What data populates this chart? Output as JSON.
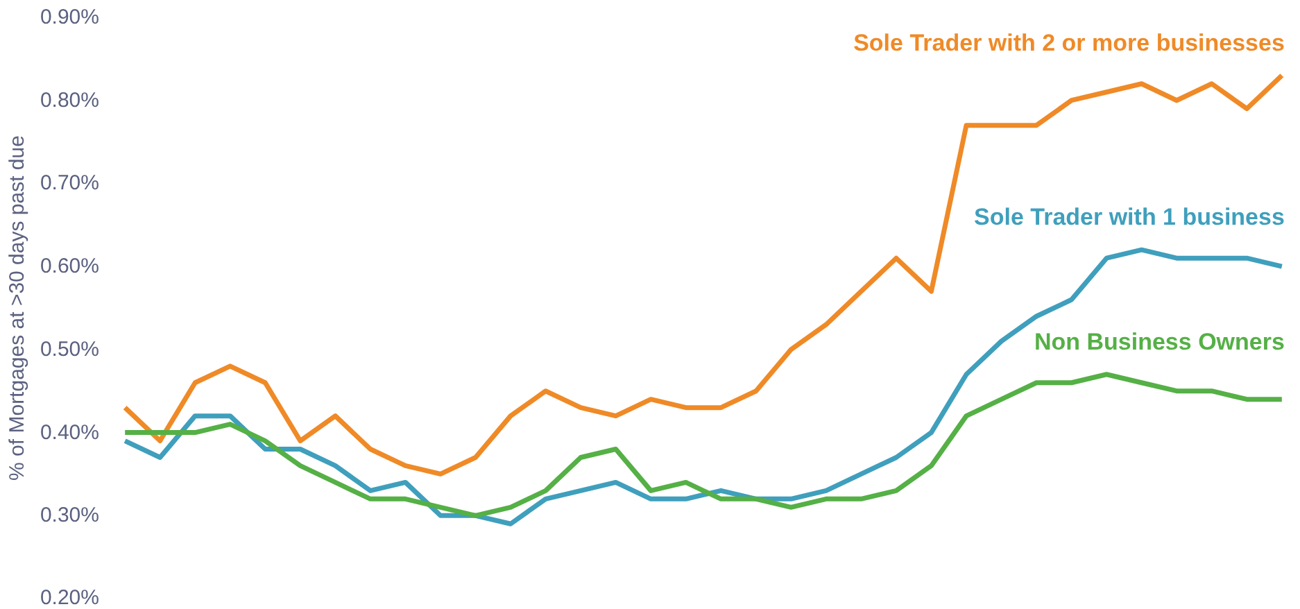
{
  "chart_data": {
    "type": "line",
    "ylabel": "% of Mortgages at >30 days past due",
    "categories": [
      null,
      null,
      null,
      null,
      null,
      null,
      null,
      null,
      null,
      null,
      null,
      null,
      null,
      null,
      null,
      null,
      null,
      null,
      null,
      null,
      null,
      null,
      null,
      null,
      null,
      null,
      null,
      null,
      null,
      null,
      null,
      null,
      null,
      null
    ],
    "series": [
      {
        "name": "Sole Trader with 2 or more businesses",
        "color": "#ef8a27",
        "values": [
          0.43,
          0.39,
          0.46,
          0.48,
          0.46,
          0.39,
          0.42,
          0.38,
          0.36,
          0.35,
          0.37,
          0.42,
          0.45,
          0.43,
          0.42,
          0.44,
          0.43,
          0.43,
          0.45,
          0.5,
          0.53,
          0.57,
          0.61,
          0.57,
          0.77,
          0.77,
          0.77,
          0.8,
          0.81,
          0.82,
          0.8,
          0.82,
          0.79,
          0.83
        ]
      },
      {
        "name": "Sole Trader with 1 business",
        "color": "#3f9fbd",
        "values": [
          0.39,
          0.37,
          0.42,
          0.42,
          0.38,
          0.38,
          0.36,
          0.33,
          0.34,
          0.3,
          0.3,
          0.29,
          0.32,
          0.33,
          0.34,
          0.32,
          0.32,
          0.33,
          0.32,
          0.32,
          0.33,
          0.35,
          0.37,
          0.4,
          0.47,
          0.51,
          0.54,
          0.56,
          0.61,
          0.62,
          0.61,
          0.61,
          0.61,
          0.6
        ]
      },
      {
        "name": "Non Business Owners",
        "color": "#55b046",
        "values": [
          0.4,
          0.4,
          0.4,
          0.41,
          0.39,
          0.36,
          0.34,
          0.32,
          0.32,
          0.31,
          0.3,
          0.31,
          0.33,
          0.37,
          0.38,
          0.33,
          0.34,
          0.32,
          0.32,
          0.31,
          0.32,
          0.32,
          0.33,
          0.36,
          0.42,
          0.44,
          0.46,
          0.46,
          0.47,
          0.46,
          0.45,
          0.45,
          0.44,
          0.44
        ]
      }
    ],
    "ylim": [
      0.2,
      0.9
    ],
    "yticks": [
      {
        "value": 0.2,
        "label": "0.20%"
      },
      {
        "value": 0.3,
        "label": "0.30%"
      },
      {
        "value": 0.4,
        "label": "0.40%"
      },
      {
        "value": 0.5,
        "label": "0.50%"
      },
      {
        "value": 0.6,
        "label": "0.60%"
      },
      {
        "value": 0.7,
        "label": "0.70%"
      },
      {
        "value": 0.8,
        "label": "0.80%"
      },
      {
        "value": 0.9,
        "label": "0.90%"
      }
    ],
    "tick_labels": "y",
    "grid": false,
    "marker": "none",
    "line_style": "solid"
  }
}
